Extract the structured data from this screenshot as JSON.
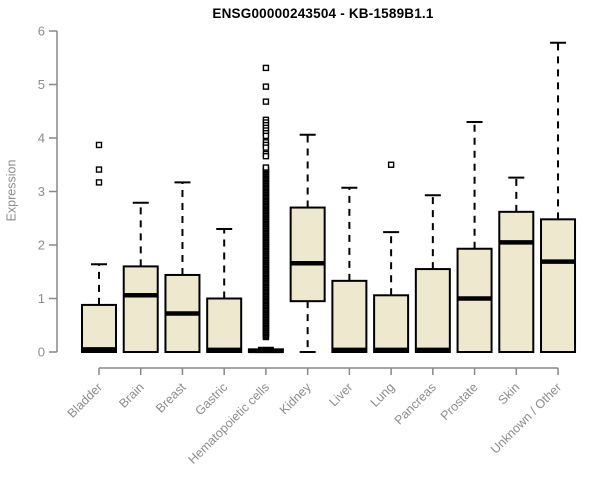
{
  "title": "ENSG00000243504 - KB-1589B1.1",
  "colors": {
    "box_fill": "#EDE8CE",
    "box_border": "#000000",
    "median": "#000000",
    "whisker": "#000000",
    "outlier": "#000000",
    "axis_line": "#888888",
    "axis_text": "#8c8c8c",
    "title_text": "#000000"
  },
  "chart_data": {
    "type": "boxplot",
    "title": "ENSG00000243504 - KB-1589B1.1",
    "xlabel": "",
    "ylabel": "Expression",
    "ylim": [
      0,
      6
    ],
    "yticks": [
      0,
      1,
      2,
      3,
      4,
      5,
      6
    ],
    "grid": false,
    "legend": "none",
    "categories": [
      "Bladder",
      "Brain",
      "Breast",
      "Gastric",
      "Hematopoietic cells",
      "Kidney",
      "Liver",
      "Lung",
      "Pancreas",
      "Prostate",
      "Skin",
      "Unknown / Other"
    ],
    "series": [
      {
        "name": "Bladder",
        "whisker_low": 0,
        "q1": 0,
        "median": 0.05,
        "q3": 0.88,
        "whisker_high": 1.64,
        "outliers": [
          3.17,
          3.41,
          3.87
        ]
      },
      {
        "name": "Brain",
        "whisker_low": 0,
        "q1": 0,
        "median": 1.06,
        "q3": 1.6,
        "whisker_high": 2.79,
        "outliers": []
      },
      {
        "name": "Breast",
        "whisker_low": 0,
        "q1": 0,
        "median": 0.72,
        "q3": 1.44,
        "whisker_high": 3.17,
        "outliers": []
      },
      {
        "name": "Gastric",
        "whisker_low": 0,
        "q1": 0,
        "median": 0.04,
        "q3": 1.0,
        "whisker_high": 2.3,
        "outliers": []
      },
      {
        "name": "Hematopoietic cells",
        "whisker_low": 0,
        "q1": 0,
        "median": 0.02,
        "q3": 0.05,
        "whisker_high": 0.08,
        "outliers": [
          5.31,
          4.96,
          4.68,
          4.34,
          4.29,
          4.24,
          4.19,
          4.14,
          4.09,
          4.04,
          3.92,
          3.87,
          3.82,
          3.7,
          3.66
        ],
        "outlier_band": {
          "min": 0.28,
          "max": 3.46,
          "step": 0.024
        }
      },
      {
        "name": "Kidney",
        "whisker_low": 0,
        "q1": 0.95,
        "median": 1.66,
        "q3": 2.7,
        "whisker_high": 4.06,
        "outliers": []
      },
      {
        "name": "Liver",
        "whisker_low": 0,
        "q1": 0,
        "median": 0.04,
        "q3": 1.33,
        "whisker_high": 3.07,
        "outliers": []
      },
      {
        "name": "Lung",
        "whisker_low": 0,
        "q1": 0,
        "median": 0.04,
        "q3": 1.06,
        "whisker_high": 2.24,
        "outliers": [
          3.5
        ]
      },
      {
        "name": "Pancreas",
        "whisker_low": 0,
        "q1": 0,
        "median": 0.04,
        "q3": 1.55,
        "whisker_high": 2.93,
        "outliers": []
      },
      {
        "name": "Prostate",
        "whisker_low": 0,
        "q1": 0,
        "median": 1.0,
        "q3": 1.93,
        "whisker_high": 4.3,
        "outliers": []
      },
      {
        "name": "Skin",
        "whisker_low": 0,
        "q1": 0,
        "median": 2.05,
        "q3": 2.62,
        "whisker_high": 3.26,
        "outliers": []
      },
      {
        "name": "Unknown / Other",
        "whisker_low": 0,
        "q1": 0,
        "median": 1.69,
        "q3": 2.48,
        "whisker_high": 5.78,
        "outliers": []
      }
    ]
  }
}
